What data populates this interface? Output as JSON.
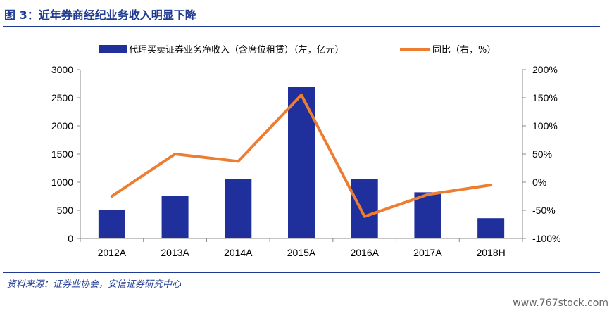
{
  "header": {
    "title": "图 3：近年券商经纪业务收入明显下降"
  },
  "footer": {
    "source": "资料来源：证券业协会，安信证券研究中心",
    "watermark": "www.767stock.com"
  },
  "colors": {
    "bar": "#1f2f9b",
    "line": "#ed7d31",
    "accent": "#1f3a93"
  },
  "chart_data": {
    "type": "bar",
    "categories": [
      "2012A",
      "2013A",
      "2014A",
      "2015A",
      "2016A",
      "2017A",
      "2018H"
    ],
    "series": [
      {
        "name": "代理买卖证券业务净收入（含席位租赁）（左，亿元）",
        "chart": "bar",
        "axis": "left",
        "values": [
          505,
          760,
          1050,
          2690,
          1050,
          820,
          360
        ]
      },
      {
        "name": "同比（右，%）",
        "chart": "line",
        "axis": "right",
        "values": [
          -25,
          50,
          37,
          155,
          -61,
          -22,
          -5
        ]
      }
    ],
    "y_left": {
      "ylim": [
        0,
        3000
      ],
      "ticks": [
        "0",
        "500",
        "1000",
        "1500",
        "2000",
        "2500",
        "3000"
      ]
    },
    "y_right": {
      "ylim": [
        -100,
        200
      ],
      "ticks": [
        "-100%",
        "-50%",
        "0%",
        "50%",
        "100%",
        "150%",
        "200%"
      ]
    },
    "legend_position": "top",
    "grid": false
  }
}
